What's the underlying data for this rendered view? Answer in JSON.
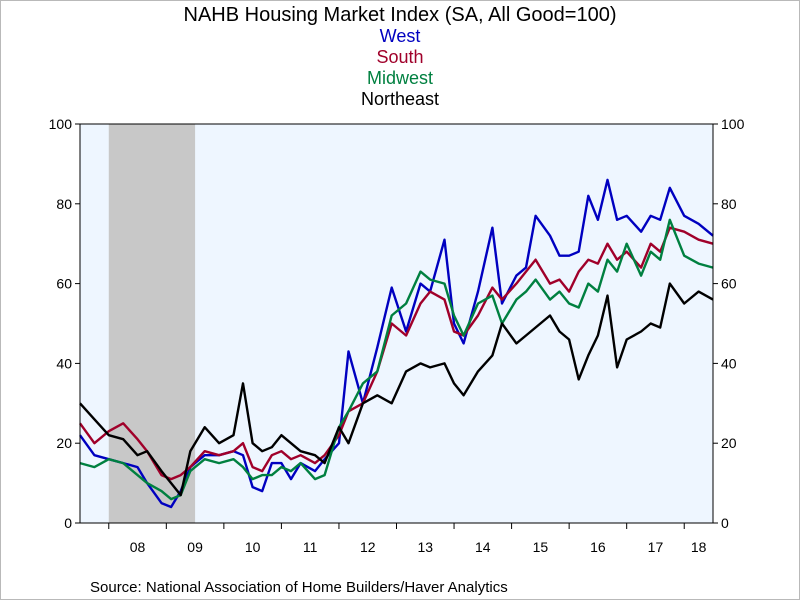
{
  "chart_data": {
    "type": "line",
    "title": "NAHB Housing Market Index (SA, All Good=100)",
    "source": "Source:  National Association of Home Builders/Haver Analytics",
    "ylim": [
      0,
      100
    ],
    "yticks": [
      "0",
      "20",
      "40",
      "60",
      "80",
      "100"
    ],
    "x_range": [
      "2007-07",
      "2018-07"
    ],
    "xtick_labels": [
      "08",
      "09",
      "10",
      "11",
      "12",
      "13",
      "14",
      "15",
      "16",
      "17",
      "18"
    ],
    "recession": {
      "start": "2008-01",
      "end": "2009-06",
      "color": "#c8c8c8"
    },
    "plot_background": "#eef6ff",
    "grid": false,
    "legend_placement": "top-center",
    "series": [
      {
        "name": "West",
        "color": "#0000c0",
        "points": [
          [
            "2007-07",
            22
          ],
          [
            "2007-10",
            17
          ],
          [
            "2008-01",
            16
          ],
          [
            "2008-04",
            15
          ],
          [
            "2008-07",
            14
          ],
          [
            "2008-09",
            10
          ],
          [
            "2008-12",
            5
          ],
          [
            "2009-02",
            4
          ],
          [
            "2009-04",
            8
          ],
          [
            "2009-06",
            14
          ],
          [
            "2009-09",
            17
          ],
          [
            "2009-12",
            17
          ],
          [
            "2010-03",
            18
          ],
          [
            "2010-05",
            17
          ],
          [
            "2010-07",
            9
          ],
          [
            "2010-09",
            8
          ],
          [
            "2010-11",
            15
          ],
          [
            "2011-01",
            15
          ],
          [
            "2011-03",
            11
          ],
          [
            "2011-05",
            15
          ],
          [
            "2011-08",
            13
          ],
          [
            "2011-10",
            16
          ],
          [
            "2012-01",
            20
          ],
          [
            "2012-03",
            43
          ],
          [
            "2012-06",
            30
          ],
          [
            "2012-09",
            44
          ],
          [
            "2012-12",
            59
          ],
          [
            "2013-03",
            48
          ],
          [
            "2013-06",
            60
          ],
          [
            "2013-08",
            58
          ],
          [
            "2013-11",
            71
          ],
          [
            "2014-01",
            50
          ],
          [
            "2014-03",
            45
          ],
          [
            "2014-06",
            58
          ],
          [
            "2014-09",
            74
          ],
          [
            "2014-11",
            55
          ],
          [
            "2015-02",
            62
          ],
          [
            "2015-04",
            64
          ],
          [
            "2015-06",
            77
          ],
          [
            "2015-09",
            72
          ],
          [
            "2015-11",
            67
          ],
          [
            "2016-01",
            67
          ],
          [
            "2016-03",
            68
          ],
          [
            "2016-05",
            82
          ],
          [
            "2016-07",
            76
          ],
          [
            "2016-09",
            86
          ],
          [
            "2016-11",
            76
          ],
          [
            "2017-01",
            77
          ],
          [
            "2017-04",
            73
          ],
          [
            "2017-06",
            77
          ],
          [
            "2017-08",
            76
          ],
          [
            "2017-10",
            84
          ],
          [
            "2018-01",
            77
          ],
          [
            "2018-04",
            75
          ],
          [
            "2018-07",
            72
          ]
        ]
      },
      {
        "name": "South",
        "color": "#a0002a",
        "points": [
          [
            "2007-07",
            25
          ],
          [
            "2007-10",
            20
          ],
          [
            "2008-01",
            23
          ],
          [
            "2008-04",
            25
          ],
          [
            "2008-07",
            21
          ],
          [
            "2008-09",
            18
          ],
          [
            "2008-12",
            12
          ],
          [
            "2009-02",
            11
          ],
          [
            "2009-04",
            12
          ],
          [
            "2009-06",
            14
          ],
          [
            "2009-09",
            18
          ],
          [
            "2009-12",
            17
          ],
          [
            "2010-03",
            18
          ],
          [
            "2010-05",
            20
          ],
          [
            "2010-07",
            14
          ],
          [
            "2010-09",
            13
          ],
          [
            "2010-11",
            17
          ],
          [
            "2011-01",
            18
          ],
          [
            "2011-03",
            16
          ],
          [
            "2011-05",
            17
          ],
          [
            "2011-08",
            15
          ],
          [
            "2011-10",
            17
          ],
          [
            "2012-01",
            22
          ],
          [
            "2012-03",
            28
          ],
          [
            "2012-06",
            30
          ],
          [
            "2012-09",
            38
          ],
          [
            "2012-12",
            50
          ],
          [
            "2013-03",
            47
          ],
          [
            "2013-06",
            55
          ],
          [
            "2013-08",
            58
          ],
          [
            "2013-11",
            56
          ],
          [
            "2014-01",
            48
          ],
          [
            "2014-03",
            47
          ],
          [
            "2014-06",
            52
          ],
          [
            "2014-09",
            59
          ],
          [
            "2014-11",
            56
          ],
          [
            "2015-02",
            60
          ],
          [
            "2015-04",
            63
          ],
          [
            "2015-06",
            66
          ],
          [
            "2015-09",
            60
          ],
          [
            "2015-11",
            61
          ],
          [
            "2016-01",
            58
          ],
          [
            "2016-03",
            63
          ],
          [
            "2016-05",
            66
          ],
          [
            "2016-07",
            65
          ],
          [
            "2016-09",
            70
          ],
          [
            "2016-11",
            66
          ],
          [
            "2017-01",
            68
          ],
          [
            "2017-04",
            64
          ],
          [
            "2017-06",
            70
          ],
          [
            "2017-08",
            68
          ],
          [
            "2017-10",
            74
          ],
          [
            "2018-01",
            73
          ],
          [
            "2018-04",
            71
          ],
          [
            "2018-07",
            70
          ]
        ]
      },
      {
        "name": "Midwest",
        "color": "#008040",
        "points": [
          [
            "2007-07",
            15
          ],
          [
            "2007-10",
            14
          ],
          [
            "2008-01",
            16
          ],
          [
            "2008-04",
            15
          ],
          [
            "2008-07",
            12
          ],
          [
            "2008-09",
            10
          ],
          [
            "2008-12",
            8
          ],
          [
            "2009-02",
            6
          ],
          [
            "2009-04",
            7
          ],
          [
            "2009-06",
            13
          ],
          [
            "2009-09",
            16
          ],
          [
            "2009-12",
            15
          ],
          [
            "2010-03",
            16
          ],
          [
            "2010-05",
            14
          ],
          [
            "2010-07",
            11
          ],
          [
            "2010-09",
            12
          ],
          [
            "2010-11",
            12
          ],
          [
            "2011-01",
            14
          ],
          [
            "2011-03",
            13
          ],
          [
            "2011-05",
            15
          ],
          [
            "2011-08",
            11
          ],
          [
            "2011-10",
            12
          ],
          [
            "2012-01",
            24
          ],
          [
            "2012-03",
            28
          ],
          [
            "2012-06",
            35
          ],
          [
            "2012-09",
            38
          ],
          [
            "2012-12",
            52
          ],
          [
            "2013-03",
            55
          ],
          [
            "2013-06",
            63
          ],
          [
            "2013-08",
            61
          ],
          [
            "2013-11",
            60
          ],
          [
            "2014-01",
            52
          ],
          [
            "2014-03",
            47
          ],
          [
            "2014-06",
            55
          ],
          [
            "2014-09",
            57
          ],
          [
            "2014-11",
            50
          ],
          [
            "2015-02",
            56
          ],
          [
            "2015-04",
            58
          ],
          [
            "2015-06",
            61
          ],
          [
            "2015-09",
            56
          ],
          [
            "2015-11",
            58
          ],
          [
            "2016-01",
            55
          ],
          [
            "2016-03",
            54
          ],
          [
            "2016-05",
            60
          ],
          [
            "2016-07",
            58
          ],
          [
            "2016-09",
            66
          ],
          [
            "2016-11",
            63
          ],
          [
            "2017-01",
            70
          ],
          [
            "2017-04",
            62
          ],
          [
            "2017-06",
            68
          ],
          [
            "2017-08",
            66
          ],
          [
            "2017-10",
            76
          ],
          [
            "2018-01",
            67
          ],
          [
            "2018-04",
            65
          ],
          [
            "2018-07",
            64
          ]
        ]
      },
      {
        "name": "Northeast",
        "color": "#000000",
        "points": [
          [
            "2007-07",
            30
          ],
          [
            "2007-10",
            26
          ],
          [
            "2008-01",
            22
          ],
          [
            "2008-04",
            21
          ],
          [
            "2008-07",
            17
          ],
          [
            "2008-09",
            18
          ],
          [
            "2008-12",
            13
          ],
          [
            "2009-02",
            10
          ],
          [
            "2009-04",
            7
          ],
          [
            "2009-06",
            18
          ],
          [
            "2009-09",
            24
          ],
          [
            "2009-12",
            20
          ],
          [
            "2010-03",
            22
          ],
          [
            "2010-05",
            35
          ],
          [
            "2010-07",
            20
          ],
          [
            "2010-09",
            18
          ],
          [
            "2010-11",
            19
          ],
          [
            "2011-01",
            22
          ],
          [
            "2011-03",
            20
          ],
          [
            "2011-05",
            18
          ],
          [
            "2011-08",
            17
          ],
          [
            "2011-10",
            15
          ],
          [
            "2012-01",
            24
          ],
          [
            "2012-03",
            20
          ],
          [
            "2012-06",
            30
          ],
          [
            "2012-09",
            32
          ],
          [
            "2012-12",
            30
          ],
          [
            "2013-03",
            38
          ],
          [
            "2013-06",
            40
          ],
          [
            "2013-08",
            39
          ],
          [
            "2013-11",
            40
          ],
          [
            "2014-01",
            35
          ],
          [
            "2014-03",
            32
          ],
          [
            "2014-06",
            38
          ],
          [
            "2014-09",
            42
          ],
          [
            "2014-11",
            50
          ],
          [
            "2015-02",
            45
          ],
          [
            "2015-04",
            47
          ],
          [
            "2015-06",
            49
          ],
          [
            "2015-09",
            52
          ],
          [
            "2015-11",
            48
          ],
          [
            "2016-01",
            46
          ],
          [
            "2016-03",
            36
          ],
          [
            "2016-05",
            42
          ],
          [
            "2016-07",
            47
          ],
          [
            "2016-09",
            57
          ],
          [
            "2016-11",
            39
          ],
          [
            "2017-01",
            46
          ],
          [
            "2017-04",
            48
          ],
          [
            "2017-06",
            50
          ],
          [
            "2017-08",
            49
          ],
          [
            "2017-10",
            60
          ],
          [
            "2018-01",
            55
          ],
          [
            "2018-04",
            58
          ],
          [
            "2018-07",
            56
          ]
        ]
      }
    ]
  }
}
